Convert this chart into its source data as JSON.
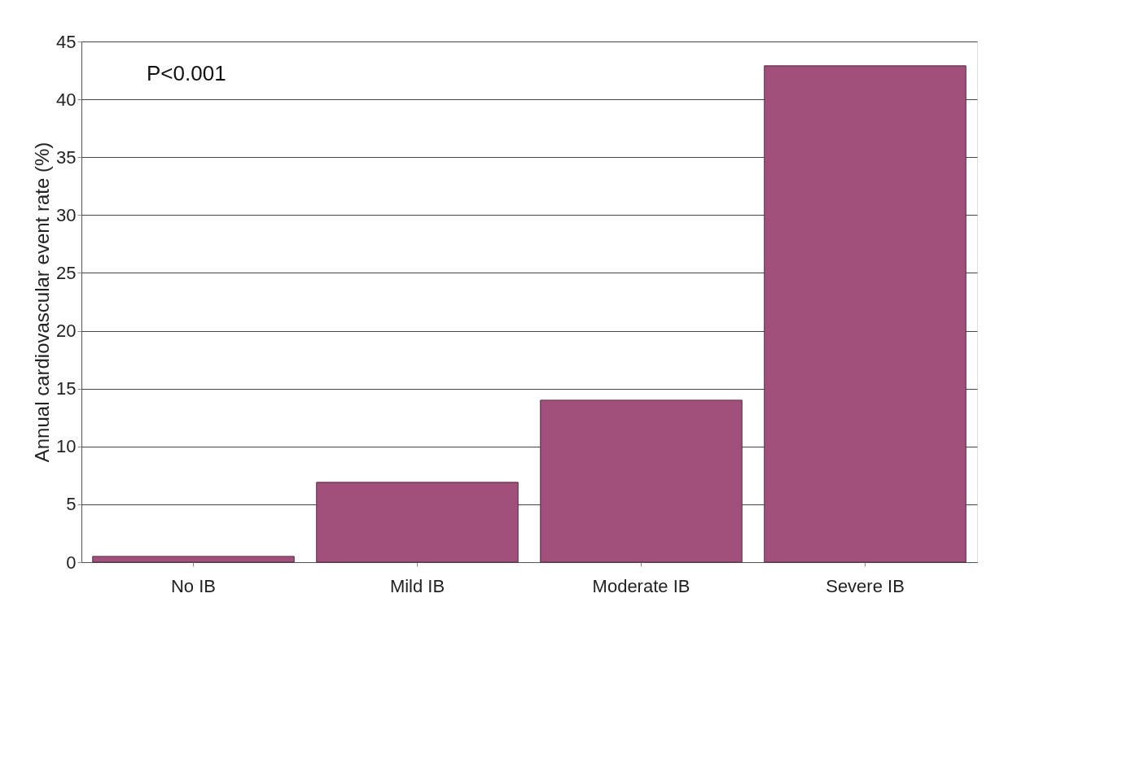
{
  "chart_data": {
    "type": "bar",
    "ylabel": "Annual cardiovascular event rate (%)",
    "categories": [
      "No IB",
      "Mild IB",
      "Moderate IB",
      "Severe IB"
    ],
    "values": [
      0.5,
      6.9,
      14,
      42.9
    ],
    "color": "#a0507a",
    "ylim": [
      0,
      45
    ],
    "yticks": [
      0,
      5,
      10,
      15,
      20,
      25,
      30,
      35,
      40,
      45
    ],
    "grid": "y",
    "annotations": [
      "P<0.001"
    ]
  }
}
